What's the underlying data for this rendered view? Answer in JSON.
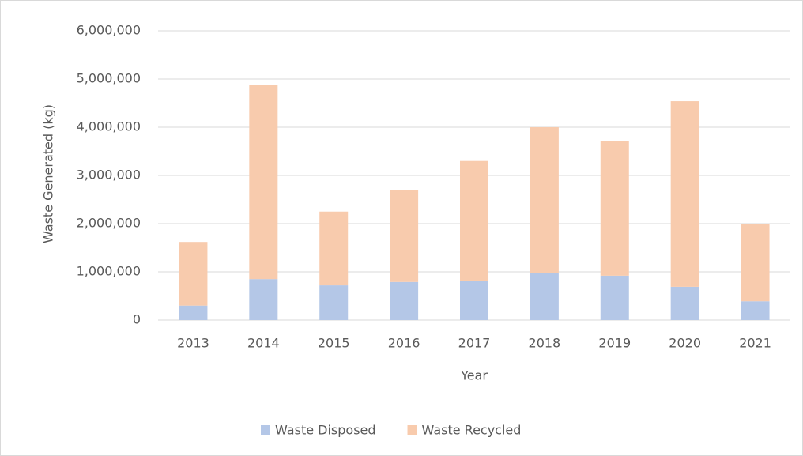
{
  "chart_data": {
    "type": "stacked_bar",
    "x_label": "Year",
    "y_label": "Waste Generated (kg)",
    "categories": [
      "2013",
      "2014",
      "2015",
      "2016",
      "2017",
      "2018",
      "2019",
      "2020",
      "2021"
    ],
    "series": [
      {
        "name": "Waste Disposed",
        "color": "#b4c7e7",
        "values": [
          300000,
          850000,
          720000,
          790000,
          820000,
          980000,
          920000,
          690000,
          390000
        ]
      },
      {
        "name": "Waste Recycled",
        "color": "#f8cbad",
        "values": [
          1320000,
          4030000,
          1530000,
          1910000,
          2480000,
          3020000,
          2800000,
          3850000,
          1610000
        ]
      }
    ],
    "ylim": [
      0,
      6000000
    ],
    "yticks": [
      0,
      {
        "value": 1000000,
        "label": "1,000,000"
      },
      {
        "value": 2000000,
        "label": "2,000,000"
      },
      {
        "value": 3000000,
        "label": "3,000,000"
      },
      {
        "value": 4000000,
        "label": "4,000,000"
      },
      {
        "value": 5000000,
        "label": "5,000,000"
      },
      {
        "value": 6000000,
        "label": "6,000,000"
      }
    ],
    "grid": true,
    "legend": "bottom"
  }
}
